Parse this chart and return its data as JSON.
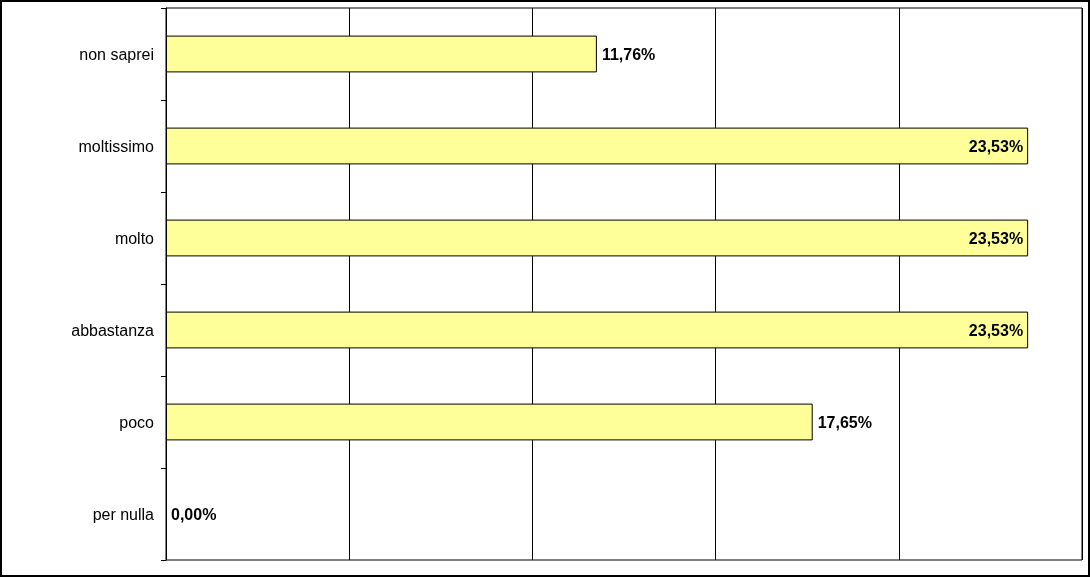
{
  "chart_data": {
    "type": "bar",
    "orientation": "horizontal",
    "categories": [
      "non saprei",
      "moltissimo",
      "molto",
      "abbastanza",
      "poco",
      "per nulla"
    ],
    "values": [
      11.76,
      23.53,
      23.53,
      23.53,
      17.65,
      0.0
    ],
    "value_labels": [
      "11,76%",
      "23,53%",
      "23,53%",
      "23,53%",
      "17,65%",
      "0,00%"
    ],
    "color": "#ffff99",
    "xlim": [
      0,
      25
    ],
    "xticks": [
      {
        "value": 0,
        "label": null
      },
      {
        "value": 5,
        "label": null
      },
      {
        "value": 10,
        "label": null
      },
      {
        "value": 15,
        "label": null
      },
      {
        "value": 20,
        "label": null
      },
      {
        "value": 25,
        "label": null
      }
    ],
    "tick_labels": "y",
    "grid": "x"
  }
}
